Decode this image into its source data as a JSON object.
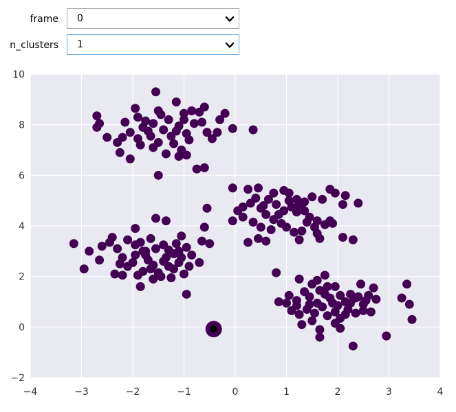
{
  "controls": {
    "frame": {
      "label": "frame",
      "value": "0",
      "icon": "chevron-down-icon"
    },
    "n_clusters": {
      "label": "n_clusters",
      "value": "1",
      "icon": "chevron-down-icon"
    }
  },
  "chart_data": {
    "type": "scatter",
    "xlim": [
      -4,
      4
    ],
    "ylim": [
      -2,
      10
    ],
    "xticks": [
      -4,
      -3,
      -2,
      -1,
      0,
      1,
      2,
      3,
      4
    ],
    "yticks": [
      -2,
      0,
      2,
      4,
      6,
      8,
      10
    ],
    "grid": true,
    "colors": {
      "background": "#e9e9f1",
      "grid": "#ffffff",
      "point": "#440154",
      "center": "#000000"
    },
    "centers": [
      {
        "x": -0.42,
        "y": -0.08
      }
    ],
    "points": [
      [
        -1.55,
        9.3
      ],
      [
        -1.95,
        8.65
      ],
      [
        -1.5,
        8.55
      ],
      [
        -1.15,
        8.9
      ],
      [
        -1.0,
        8.45
      ],
      [
        -0.6,
        8.7
      ],
      [
        -0.2,
        8.45
      ],
      [
        -0.3,
        8.2
      ],
      [
        -0.05,
        7.85
      ],
      [
        0.35,
        7.8
      ],
      [
        -2.7,
        8.35
      ],
      [
        -2.65,
        8.05
      ],
      [
        -2.7,
        7.9
      ],
      [
        -2.5,
        7.5
      ],
      [
        -2.3,
        7.3
      ],
      [
        -2.2,
        7.5
      ],
      [
        -2.15,
        8.1
      ],
      [
        -1.9,
        8.3
      ],
      [
        -1.8,
        7.9
      ],
      [
        -1.6,
        8.05
      ],
      [
        -1.4,
        7.8
      ],
      [
        -1.3,
        8.2
      ],
      [
        -1.1,
        7.95
      ],
      [
        -0.95,
        7.65
      ],
      [
        -0.8,
        8.05
      ],
      [
        -0.7,
        8.5
      ],
      [
        -0.55,
        7.7
      ],
      [
        -0.45,
        7.45
      ],
      [
        -1.85,
        7.2
      ],
      [
        -1.65,
        7.55
      ],
      [
        -1.5,
        7.3
      ],
      [
        -1.2,
        7.25
      ],
      [
        -1.05,
        7.0
      ],
      [
        -1.35,
        6.85
      ],
      [
        -2.25,
        6.9
      ],
      [
        -2.05,
        6.65
      ],
      [
        -1.1,
        6.75
      ],
      [
        -0.95,
        6.8
      ],
      [
        -0.75,
        6.25
      ],
      [
        -0.6,
        6.3
      ],
      [
        -1.5,
        6.0
      ],
      [
        -1.7,
        7.75
      ],
      [
        -1.9,
        7.45
      ],
      [
        -1.25,
        7.55
      ],
      [
        -1.0,
        8.2
      ],
      [
        -0.85,
        8.55
      ],
      [
        -0.65,
        8.1
      ],
      [
        -0.35,
        7.7
      ],
      [
        -1.45,
        8.4
      ],
      [
        -1.75,
        8.15
      ],
      [
        -2.05,
        7.7
      ],
      [
        -1.6,
        7.1
      ],
      [
        -0.9,
        7.4
      ],
      [
        -1.15,
        7.75
      ],
      [
        -0.05,
        5.5
      ],
      [
        0.25,
        5.45
      ],
      [
        0.45,
        5.5
      ],
      [
        0.75,
        5.3
      ],
      [
        0.95,
        5.4
      ],
      [
        1.05,
        5.3
      ],
      [
        1.2,
        5.05
      ],
      [
        1.35,
        4.95
      ],
      [
        1.5,
        5.15
      ],
      [
        1.7,
        5.05
      ],
      [
        1.85,
        5.45
      ],
      [
        1.95,
        5.3
      ],
      [
        2.1,
        4.85
      ],
      [
        2.15,
        5.2
      ],
      [
        2.4,
        4.9
      ],
      [
        0.05,
        4.6
      ],
      [
        0.15,
        4.75
      ],
      [
        0.3,
        4.9
      ],
      [
        0.5,
        4.7
      ],
      [
        0.6,
        4.45
      ],
      [
        0.8,
        4.85
      ],
      [
        0.95,
        4.6
      ],
      [
        1.1,
        4.75
      ],
      [
        1.2,
        4.55
      ],
      [
        1.35,
        4.6
      ],
      [
        1.45,
        4.35
      ],
      [
        1.6,
        4.2
      ],
      [
        1.75,
        4.05
      ],
      [
        1.85,
        4.2
      ],
      [
        0.35,
        4.15
      ],
      [
        0.5,
        3.95
      ],
      [
        0.7,
        3.85
      ],
      [
        0.9,
        4.1
      ],
      [
        1.0,
        3.95
      ],
      [
        1.15,
        3.75
      ],
      [
        1.3,
        3.8
      ],
      [
        1.55,
        3.95
      ],
      [
        1.6,
        3.7
      ],
      [
        0.45,
        3.5
      ],
      [
        0.6,
        3.4
      ],
      [
        1.25,
        3.45
      ],
      [
        1.65,
        3.5
      ],
      [
        2.1,
        3.55
      ],
      [
        2.3,
        3.45
      ],
      [
        0.25,
        3.35
      ],
      [
        -0.05,
        4.2
      ],
      [
        0.15,
        4.35
      ],
      [
        0.85,
        4.45
      ],
      [
        1.05,
        5.0
      ],
      [
        0.65,
        5.05
      ],
      [
        0.4,
        5.1
      ],
      [
        1.4,
        4.15
      ],
      [
        0.75,
        4.25
      ],
      [
        1.9,
        4.1
      ],
      [
        0.55,
        4.8
      ],
      [
        1.25,
        4.85
      ],
      [
        -3.15,
        3.3
      ],
      [
        -2.85,
        3.0
      ],
      [
        -2.95,
        2.3
      ],
      [
        -2.65,
        2.65
      ],
      [
        -2.6,
        3.2
      ],
      [
        -2.3,
        3.1
      ],
      [
        -2.2,
        2.75
      ],
      [
        -2.1,
        3.45
      ],
      [
        -1.95,
        3.9
      ],
      [
        -1.85,
        3.35
      ],
      [
        -1.75,
        3.0
      ],
      [
        -1.65,
        3.5
      ],
      [
        -1.55,
        4.3
      ],
      [
        -1.35,
        4.2
      ],
      [
        -1.3,
        3.05
      ],
      [
        -1.15,
        3.3
      ],
      [
        -1.05,
        3.6
      ],
      [
        -0.95,
        3.15
      ],
      [
        -0.85,
        2.85
      ],
      [
        -0.7,
        2.55
      ],
      [
        -0.65,
        3.4
      ],
      [
        -0.6,
        3.95
      ],
      [
        -0.55,
        4.7
      ],
      [
        -0.5,
        3.3
      ],
      [
        -2.25,
        2.5
      ],
      [
        -2.1,
        2.4
      ],
      [
        -2.0,
        2.55
      ],
      [
        -1.9,
        2.05
      ],
      [
        -1.8,
        2.2
      ],
      [
        -1.7,
        2.65
      ],
      [
        -1.6,
        2.45
      ],
      [
        -1.5,
        2.15
      ],
      [
        -1.4,
        2.6
      ],
      [
        -1.3,
        2.4
      ],
      [
        -1.2,
        2.3
      ],
      [
        -1.1,
        2.55
      ],
      [
        -1.0,
        2.1
      ],
      [
        -0.9,
        2.4
      ],
      [
        -1.85,
        1.6
      ],
      [
        -1.6,
        1.9
      ],
      [
        -1.45,
        2.0
      ],
      [
        -1.25,
        1.95
      ],
      [
        -1.95,
        2.85
      ],
      [
        -1.75,
        2.85
      ],
      [
        -1.55,
        3.1
      ],
      [
        -1.4,
        3.25
      ],
      [
        -1.2,
        2.9
      ],
      [
        -1.05,
        2.75
      ],
      [
        -2.45,
        3.35
      ],
      [
        -2.4,
        3.55
      ],
      [
        -1.95,
        3.25
      ],
      [
        -1.8,
        3.0
      ],
      [
        -0.95,
        1.3
      ],
      [
        -2.35,
        2.1
      ],
      [
        -2.2,
        2.05
      ],
      [
        -1.65,
        2.3
      ],
      [
        -1.35,
        2.75
      ],
      [
        -1.1,
        3.0
      ],
      [
        0.8,
        2.15
      ],
      [
        0.85,
        1.0
      ],
      [
        1.05,
        1.25
      ],
      [
        1.2,
        1.05
      ],
      [
        1.25,
        1.9
      ],
      [
        1.35,
        1.4
      ],
      [
        1.45,
        0.9
      ],
      [
        1.5,
        1.7
      ],
      [
        1.6,
        1.85
      ],
      [
        1.65,
        1.45
      ],
      [
        1.75,
        2.05
      ],
      [
        1.85,
        1.15
      ],
      [
        1.95,
        1.6
      ],
      [
        2.05,
        1.25
      ],
      [
        2.15,
        1.0
      ],
      [
        2.25,
        1.3
      ],
      [
        2.35,
        1.15
      ],
      [
        2.45,
        1.7
      ],
      [
        2.5,
        0.9
      ],
      [
        2.6,
        1.25
      ],
      [
        2.7,
        1.55
      ],
      [
        2.75,
        1.1
      ],
      [
        1.1,
        0.65
      ],
      [
        1.25,
        0.5
      ],
      [
        1.4,
        0.7
      ],
      [
        1.55,
        0.55
      ],
      [
        1.7,
        0.8
      ],
      [
        1.8,
        0.45
      ],
      [
        1.95,
        0.6
      ],
      [
        2.05,
        0.35
      ],
      [
        2.2,
        0.7
      ],
      [
        2.35,
        0.55
      ],
      [
        2.5,
        0.65
      ],
      [
        1.3,
        0.1
      ],
      [
        1.5,
        0.25
      ],
      [
        1.65,
        -0.1
      ],
      [
        1.95,
        0.15
      ],
      [
        2.05,
        -0.05
      ],
      [
        1.65,
        -0.4
      ],
      [
        2.3,
        -0.75
      ],
      [
        2.95,
        -0.35
      ],
      [
        3.25,
        1.15
      ],
      [
        3.35,
        1.7
      ],
      [
        3.4,
        0.9
      ],
      [
        3.45,
        0.3
      ],
      [
        2.0,
        0.85
      ],
      [
        1.75,
        1.3
      ],
      [
        2.4,
        1.2
      ],
      [
        1.45,
        1.2
      ],
      [
        2.15,
        0.5
      ],
      [
        1.9,
        0.95
      ],
      [
        2.55,
        1.05
      ],
      [
        1.6,
        0.95
      ],
      [
        2.65,
        0.6
      ],
      [
        1.2,
        0.85
      ],
      [
        2.25,
        0.95
      ],
      [
        1.0,
        0.95
      ],
      [
        1.8,
        1.6
      ]
    ]
  }
}
